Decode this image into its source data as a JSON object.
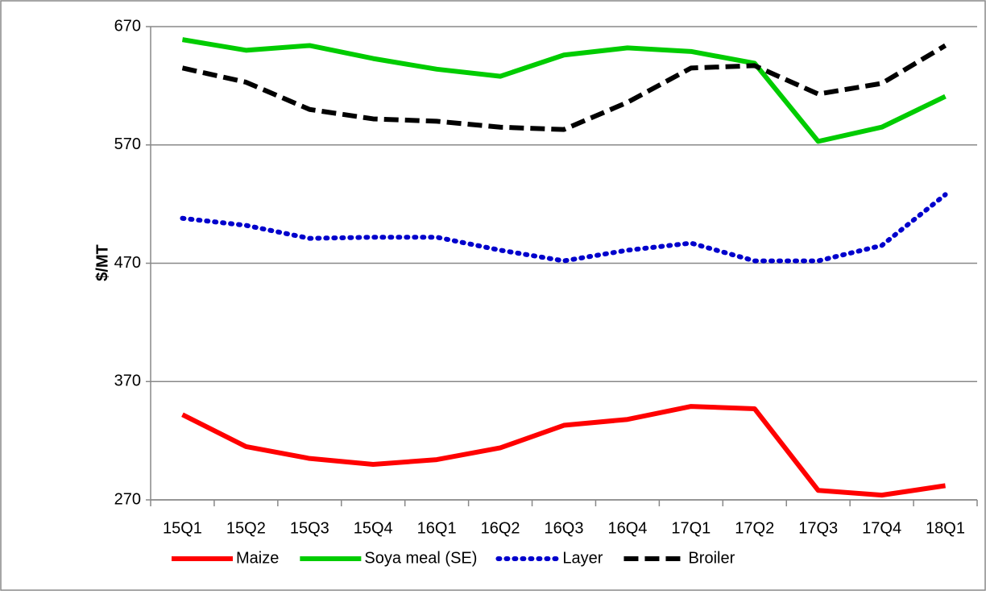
{
  "chart_data": {
    "type": "line",
    "y_label": "$/MT",
    "categories": [
      "15Q1",
      "15Q2",
      "15Q3",
      "15Q4",
      "16Q1",
      "16Q2",
      "16Q3",
      "16Q4",
      "17Q1",
      "17Q2",
      "17Q3",
      "17Q4",
      "18Q1"
    ],
    "series": [
      {
        "name": "Maize",
        "color": "#ff0000",
        "style": "solid",
        "values": [
          342,
          315,
          305,
          300,
          304,
          314,
          333,
          338,
          349,
          347,
          278,
          274,
          282
        ]
      },
      {
        "name": "Soya meal (SE)",
        "color": "#00cc00",
        "style": "solid",
        "values": [
          659,
          650,
          654,
          643,
          634,
          628,
          646,
          652,
          649,
          639,
          573,
          585,
          611
        ]
      },
      {
        "name": "Layer",
        "color": "#0000cc",
        "style": "dotted",
        "values": [
          508,
          502,
          491,
          492,
          492,
          481,
          472,
          481,
          487,
          472,
          472,
          485,
          528
        ]
      },
      {
        "name": "Broiler",
        "color": "#000000",
        "style": "dashed",
        "values": [
          635,
          623,
          600,
          592,
          590,
          585,
          583,
          606,
          635,
          637,
          613,
          622,
          654
        ]
      }
    ],
    "ylim": [
      270,
      670
    ],
    "yticks": [
      270,
      370,
      470,
      570,
      670
    ],
    "grid": true,
    "legend": "bottom"
  }
}
